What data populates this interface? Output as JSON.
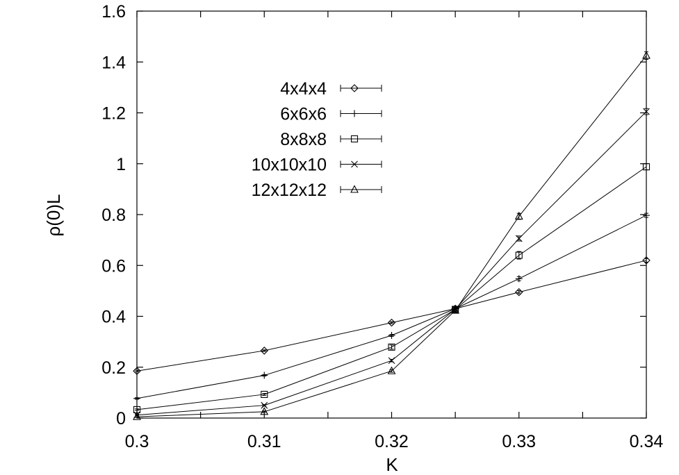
{
  "chart_data": {
    "type": "line",
    "title": "",
    "xlabel": "K",
    "ylabel": "ρ(0)L",
    "xlim": [
      0.3,
      0.34
    ],
    "ylim": [
      0,
      1.6
    ],
    "x_ticks": [
      0.3,
      0.31,
      0.32,
      0.33,
      0.34
    ],
    "x_tick_labels": [
      "0.3",
      "0.31",
      "0.32",
      "0.33",
      "0.34"
    ],
    "y_ticks": [
      0,
      0.2,
      0.4,
      0.6,
      0.8,
      1.0,
      1.2,
      1.4,
      1.6
    ],
    "y_tick_labels": [
      "0",
      "0.2",
      "0.4",
      "0.6",
      "0.8",
      "1",
      "1.2",
      "1.4",
      "1.6"
    ],
    "grid": false,
    "legend_position": "top-left",
    "x": [
      0.3,
      0.31,
      0.32,
      0.325,
      0.33,
      0.34
    ],
    "series": [
      {
        "name": "4x4x4",
        "marker": "diamond",
        "values": [
          0.185,
          0.265,
          0.375,
          0.43,
          0.495,
          0.62
        ],
        "errors": [
          0.003,
          0.003,
          0.004,
          0.005,
          0.006,
          0.007
        ]
      },
      {
        "name": "6x6x6",
        "marker": "plus",
        "values": [
          0.077,
          0.168,
          0.325,
          0.43,
          0.548,
          0.797
        ],
        "errors": [
          0.003,
          0.003,
          0.004,
          0.005,
          0.008,
          0.008
        ]
      },
      {
        "name": "8x8x8",
        "marker": "square",
        "values": [
          0.033,
          0.093,
          0.279,
          0.427,
          0.64,
          0.988
        ],
        "errors": [
          0.003,
          0.004,
          0.008,
          0.01,
          0.015,
          0.012
        ]
      },
      {
        "name": "10x10x10",
        "marker": "cross",
        "values": [
          0.012,
          0.05,
          0.226,
          0.428,
          0.706,
          1.205
        ],
        "errors": [
          0.003,
          0.003,
          0.005,
          0.008,
          0.01,
          0.012
        ]
      },
      {
        "name": "12x12x12",
        "marker": "triangle",
        "values": [
          0.005,
          0.025,
          0.185,
          0.423,
          0.793,
          1.425
        ],
        "errors": [
          0.003,
          0.003,
          0.005,
          0.01,
          0.012,
          0.015
        ]
      }
    ]
  }
}
